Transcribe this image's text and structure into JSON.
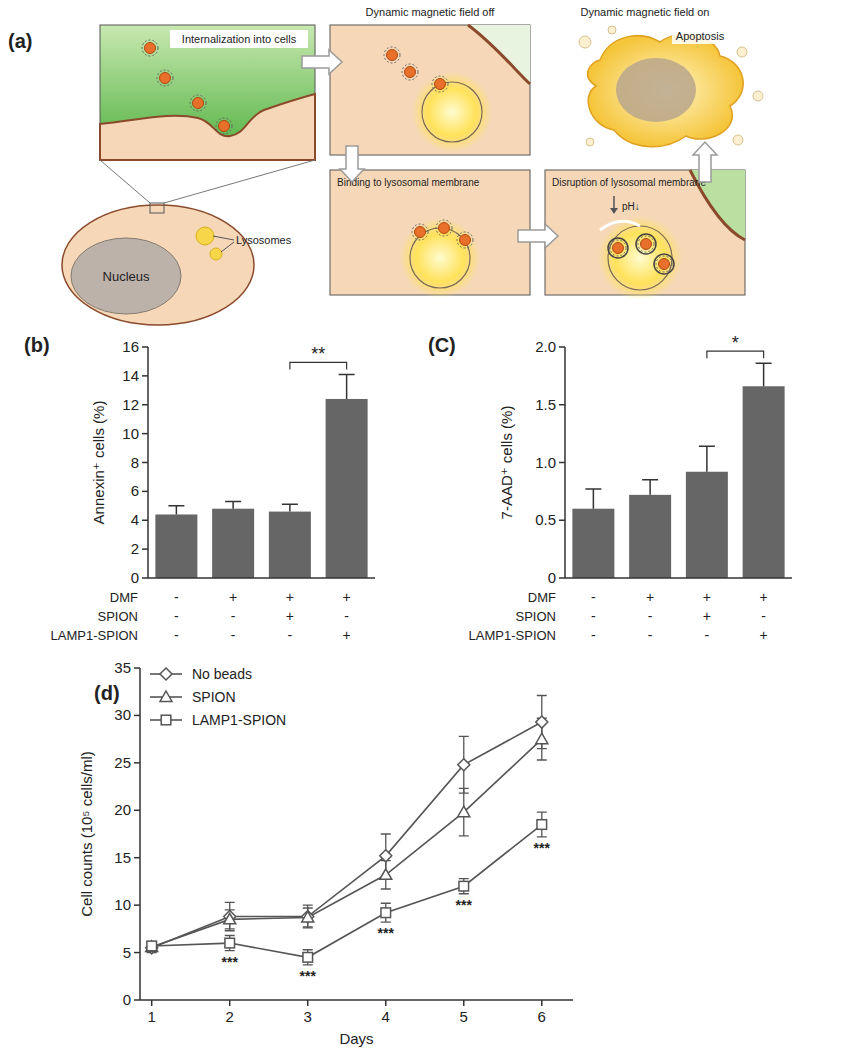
{
  "diagram": {
    "label": "(a)",
    "field_off": "Dynamic magnetic field off",
    "field_on": "Dynamic magnetic field on",
    "internalization": "Internalization into cells",
    "binding": "Binding to lysosomal membrane",
    "disruption": "Disruption of lysosomal membrane",
    "ph": "pH↓",
    "apoptosis": "Apoptosis",
    "nucleus": "Nucleus",
    "lysosomes": "Lysosomes"
  },
  "chart_data": [
    {
      "type": "bar",
      "title": "(b)",
      "y_label": "Annexin⁺ cells (%)",
      "categories": [
        null,
        null,
        null,
        null
      ],
      "values": [
        4.4,
        4.8,
        4.6,
        12.4
      ],
      "errors": [
        0.6,
        0.5,
        0.5,
        1.7
      ],
      "color": "#666666",
      "ylim": [
        0,
        16
      ],
      "yticks": [
        0,
        2,
        4,
        6,
        8,
        10,
        12,
        14,
        16
      ],
      "conditions": [
        {
          "name": "DMF",
          "signs": [
            "-",
            "+",
            "+",
            "+"
          ]
        },
        {
          "name": "SPION",
          "signs": [
            "-",
            "-",
            "+",
            "-"
          ]
        },
        {
          "name": "LAMP1-SPION",
          "signs": [
            "-",
            "-",
            "-",
            "+"
          ]
        }
      ],
      "annotations": [
        {
          "text": "**",
          "between": [
            2,
            3
          ]
        }
      ]
    },
    {
      "type": "bar",
      "title": "(C)",
      "y_label": "7-AAD⁺ cells (%)",
      "categories": [
        null,
        null,
        null,
        null
      ],
      "values": [
        0.6,
        0.72,
        0.92,
        1.66
      ],
      "errors": [
        0.17,
        0.13,
        0.22,
        0.2
      ],
      "color": "#666666",
      "ylim": [
        0,
        2
      ],
      "yticks": [
        0,
        0.5,
        {
          "value": 1,
          "label": "1.0"
        },
        1.5,
        {
          "value": 2,
          "label": "2.0"
        }
      ],
      "conditions": [
        {
          "name": "DMF",
          "signs": [
            "-",
            "+",
            "+",
            "+"
          ]
        },
        {
          "name": "SPION",
          "signs": [
            "-",
            "-",
            "+",
            "-"
          ]
        },
        {
          "name": "LAMP1-SPION",
          "signs": [
            "-",
            "-",
            "-",
            "+"
          ]
        }
      ],
      "annotations": [
        {
          "text": "*",
          "between": [
            2,
            3
          ]
        }
      ]
    },
    {
      "type": "line",
      "title": "(d)",
      "x_label": "Days",
      "y_label": "Cell counts (10⁵ cells/ml)",
      "x": [
        1,
        2,
        3,
        4,
        5,
        6
      ],
      "xlim": [
        0.85,
        6.4
      ],
      "xticks": [
        1,
        2,
        3,
        4,
        5,
        6
      ],
      "ylim": [
        0,
        35
      ],
      "yticks": [
        0,
        5,
        10,
        15,
        20,
        25,
        30,
        35
      ],
      "legend": "upper left",
      "series": [
        {
          "name": "No beads",
          "color": "#555555",
          "marker": "diamond",
          "values": [
            5.5,
            8.8,
            8.8,
            15.2,
            24.8,
            29.3
          ],
          "errors": [
            0.5,
            1.5,
            1.2,
            2.3,
            3.0,
            2.8
          ]
        },
        {
          "name": "SPION",
          "color": "#555555",
          "marker": "triangle",
          "values": [
            5.6,
            8.5,
            8.7,
            13.2,
            19.8,
            27.5
          ],
          "errors": [
            0.5,
            1.0,
            1.0,
            1.5,
            2.5,
            2.2
          ]
        },
        {
          "name": "LAMP1-SPION",
          "color": "#555555",
          "marker": "square",
          "values": [
            5.7,
            6.0,
            4.5,
            9.2,
            12.0,
            18.5
          ],
          "errors": [
            0.4,
            0.8,
            0.8,
            1.0,
            0.8,
            1.3
          ]
        }
      ],
      "annotations": [
        {
          "text": "***",
          "series": 2,
          "x": 2
        },
        {
          "text": "***",
          "series": 2,
          "x": 3
        },
        {
          "text": "***",
          "series": 2,
          "x": 4
        },
        {
          "text": "***",
          "series": 2,
          "x": 5
        },
        {
          "text": "***",
          "series": 2,
          "x": 6
        }
      ]
    }
  ]
}
